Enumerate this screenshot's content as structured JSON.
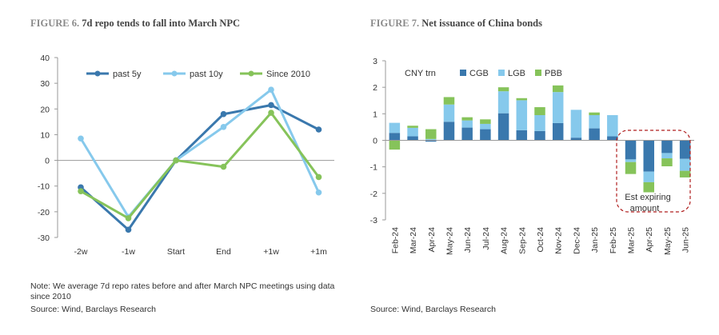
{
  "figures": {
    "fig6": {
      "label": "FIGURE 6.",
      "title": "7d repo tends to fall into March NPC"
    },
    "fig7": {
      "label": "FIGURE 7.",
      "title": "Net issuance of China bonds"
    }
  },
  "notes": {
    "fig6_note": "Note: We average 7d repo rates before and after March NPC meetings using data since 2010",
    "fig6_source": "Source: Wind, Barclays Research",
    "fig7_source": "Source: Wind, Barclays Research"
  },
  "chart_data": [
    {
      "type": "line",
      "title": "7d repo tends to fall into March NPC",
      "categories": [
        "-2w",
        "-1w",
        "Start",
        "End",
        "+1w",
        "+1m"
      ],
      "ylim": [
        -30,
        40
      ],
      "yticks": [
        -30,
        -20,
        -10,
        0,
        10,
        20,
        30,
        40
      ],
      "legend_position": "top",
      "series": [
        {
          "name": "past 5y",
          "color": "#3a78ad",
          "values": [
            -10.5,
            -27,
            0,
            18,
            21.5,
            12
          ]
        },
        {
          "name": "past 10y",
          "color": "#86c9ec",
          "values": [
            8.5,
            -22,
            0,
            13,
            27.5,
            -12.5
          ]
        },
        {
          "name": "Since 2010",
          "color": "#86c35a",
          "values": [
            -12,
            -22.5,
            0,
            -2.5,
            18.5,
            -6.5
          ]
        }
      ]
    },
    {
      "type": "bar",
      "stacked": true,
      "title": "Net issuance of China bonds",
      "unit_label": "CNY trn",
      "categories": [
        "Feb-24",
        "Mar-24",
        "Apr-24",
        "May-24",
        "Jun-24",
        "Jul-24",
        "Aug-24",
        "Sep-24",
        "Oct-24",
        "Nov-24",
        "Dec-24",
        "Jan-25",
        "Feb-25",
        "Mar-25",
        "Apr-25",
        "May-25",
        "Jun-25"
      ],
      "ylim": [
        -3,
        3
      ],
      "yticks": [
        -3,
        -2,
        -1,
        0,
        1,
        2,
        3
      ],
      "legend_position": "top",
      "series": [
        {
          "name": "CGB",
          "color": "#3a78ad",
          "values": [
            0.28,
            0.15,
            -0.05,
            0.7,
            0.48,
            0.42,
            1.02,
            0.38,
            0.35,
            0.65,
            0.1,
            0.45,
            0.15,
            -0.72,
            -1.18,
            -0.48,
            -0.7
          ]
        },
        {
          "name": "LGB",
          "color": "#86c9ec",
          "values": [
            0.38,
            0.32,
            0.05,
            0.65,
            0.27,
            0.2,
            0.83,
            1.13,
            0.6,
            1.17,
            1.05,
            0.5,
            0.8,
            -0.1,
            -0.4,
            -0.2,
            -0.45
          ]
        },
        {
          "name": "PBB",
          "color": "#86c35a",
          "values": [
            -0.35,
            0.08,
            0.37,
            0.28,
            0.12,
            0.17,
            0.15,
            0.08,
            0.3,
            0.25,
            0.0,
            0.1,
            0.0,
            -0.45,
            -0.38,
            -0.3,
            -0.25
          ]
        }
      ],
      "annotation": {
        "text_line1": "Est expiring",
        "text_line2": "amount"
      }
    }
  ]
}
